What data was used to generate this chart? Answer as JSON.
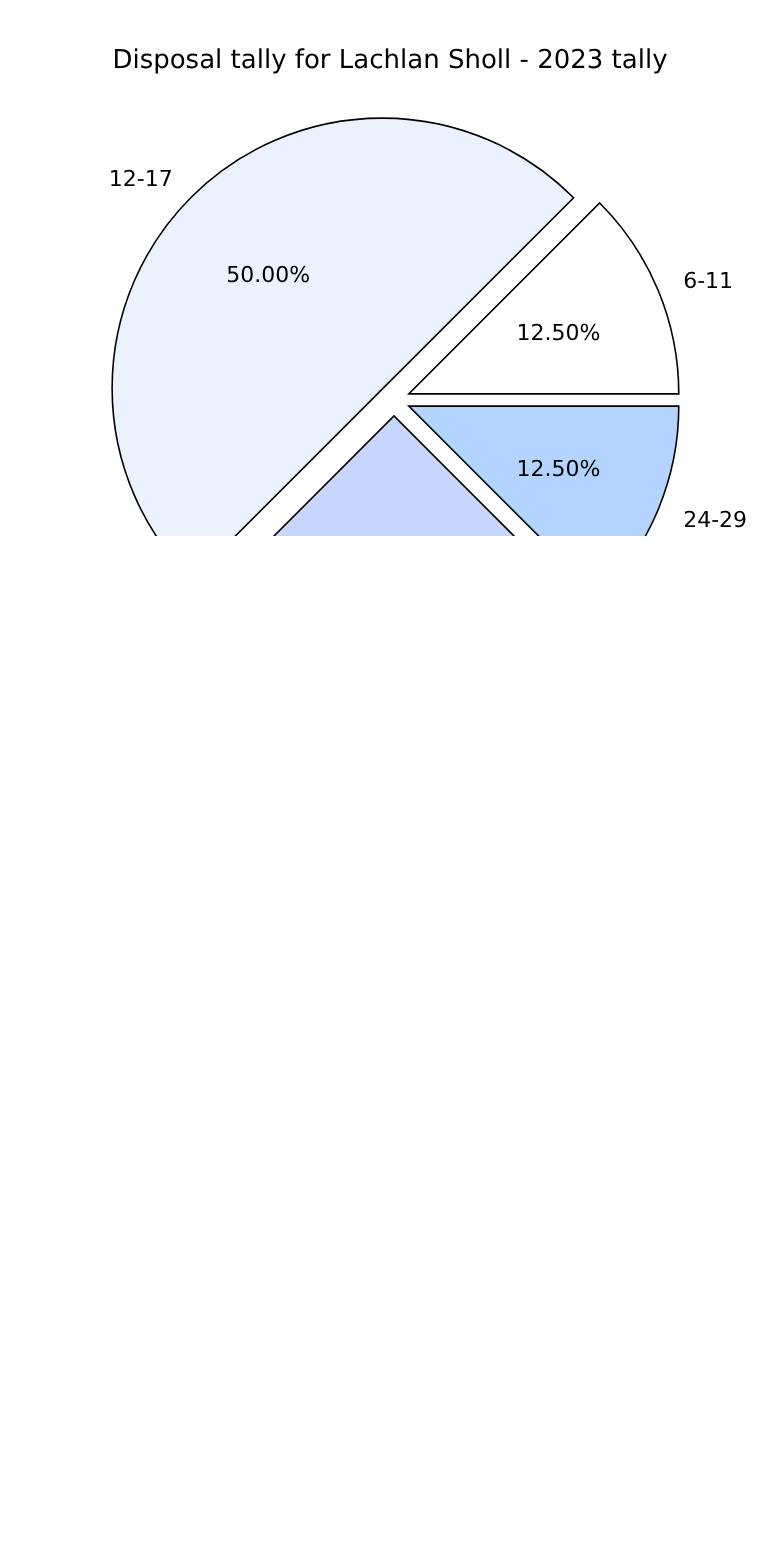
{
  "chart_data": {
    "type": "pie",
    "title": "Disposal tally for Lachlan Sholl - 2023 tally",
    "categories": [
      "6-11",
      "12-17",
      null,
      "24-29"
    ],
    "values": [
      12.5,
      50,
      25,
      12.5
    ],
    "value_labels": [
      "12.50%",
      "50.00%",
      null,
      "12.50%"
    ],
    "colors": [
      "#ffffff",
      "#eaf1ff",
      "#c6d6ff",
      "#b3d4ff"
    ]
  }
}
